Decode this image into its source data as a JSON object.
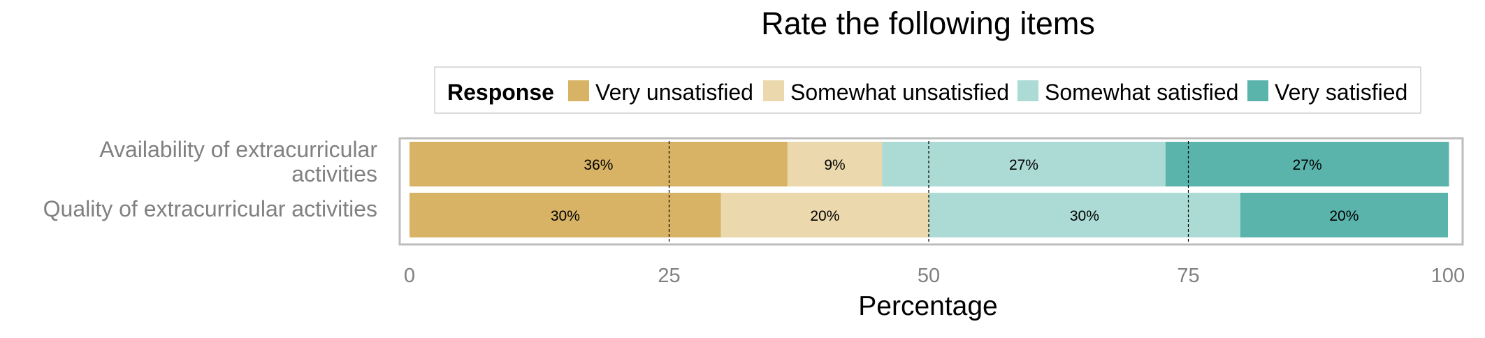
{
  "chart_data": {
    "type": "bar",
    "orientation": "horizontal",
    "stacked": true,
    "title": "Rate the following items",
    "xlabel": "Percentage",
    "ylabel": "",
    "xlim": [
      0,
      100
    ],
    "xticks": [
      "0",
      "25",
      "50",
      "75",
      "100"
    ],
    "grid": true,
    "legend": {
      "title": "Response",
      "position": "top",
      "items": [
        "Very unsatisfied",
        "Somewhat unsatisfied",
        "Somewhat satisfied",
        "Very satisfied"
      ]
    },
    "categories": [
      "Availability of extracurricular activities",
      "Quality of extracurricular activities"
    ],
    "category_lines": [
      [
        "Availability of extracurricular",
        "activities"
      ],
      [
        "Quality of extracurricular activities"
      ]
    ],
    "series": [
      {
        "name": "Very unsatisfied",
        "color": "#d8b365",
        "values": [
          36.4,
          30
        ],
        "labels": [
          "36%",
          "30%"
        ]
      },
      {
        "name": "Somewhat unsatisfied",
        "color": "#ebd8ad",
        "values": [
          9.1,
          20
        ],
        "labels": [
          "9%",
          "20%"
        ]
      },
      {
        "name": "Somewhat satisfied",
        "color": "#acdad4",
        "values": [
          27.3,
          30
        ],
        "labels": [
          "27%",
          "30%"
        ]
      },
      {
        "name": "Very satisfied",
        "color": "#5ab4ac",
        "values": [
          27.3,
          20
        ],
        "labels": [
          "27%",
          "20%"
        ]
      }
    ]
  }
}
